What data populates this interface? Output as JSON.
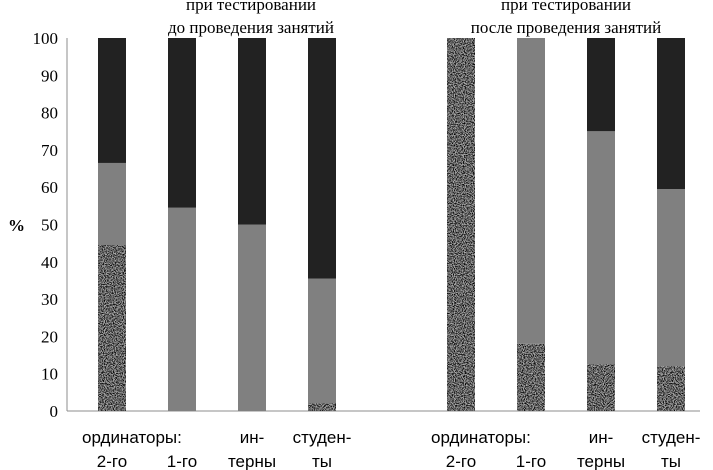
{
  "chart_data": {
    "type": "bar",
    "stacked": true,
    "ylabel": "%",
    "ylim": [
      0,
      100
    ],
    "yticks": [
      "0",
      "10",
      "20",
      "30",
      "40",
      "50",
      "60",
      "70",
      "80",
      "90",
      "100"
    ],
    "grid": false,
    "legend": "none",
    "groups": [
      {
        "label": "при тестировании\nдо проведения занятий",
        "categories": [
          [
            "ординаторы:",
            "2-го"
          ],
          [
            "",
            "1-го"
          ],
          [
            "ин-",
            "терны"
          ],
          [
            "студен-",
            "ты"
          ]
        ],
        "series": [
          {
            "color": "#a9a9a9",
            "pattern": "speckle",
            "values": [
              44.5,
              0,
              0,
              2
            ]
          },
          {
            "color": "#808080",
            "values": [
              22,
              54.5,
              50,
              33.5
            ]
          },
          {
            "color": "#222222",
            "values": [
              33.5,
              45.5,
              50,
              64.5
            ]
          }
        ]
      },
      {
        "label": "при тестировании\nпосле проведения занятий",
        "categories": [
          [
            "ординаторы:",
            "2-го"
          ],
          [
            "",
            "1-го"
          ],
          [
            "ин-",
            "терны"
          ],
          [
            "студен-",
            "ты"
          ]
        ],
        "series": [
          {
            "color": "#a9a9a9",
            "pattern": "speckle",
            "values": [
              100,
              18,
              12.5,
              12
            ]
          },
          {
            "color": "#808080",
            "values": [
              0,
              82,
              62.5,
              47.5
            ]
          },
          {
            "color": "#222222",
            "values": [
              0,
              0,
              25,
              40.5
            ]
          }
        ]
      }
    ]
  }
}
